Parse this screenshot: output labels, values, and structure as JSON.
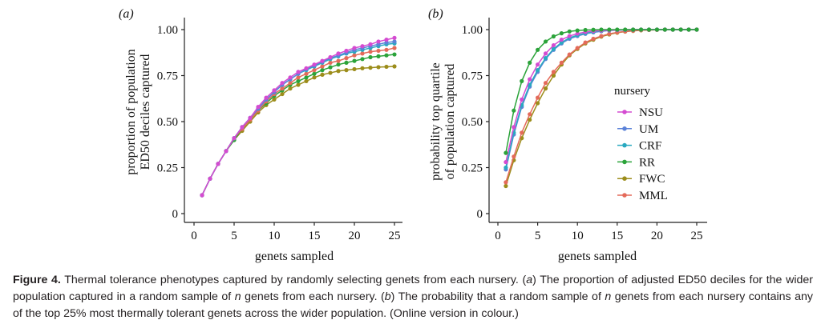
{
  "chart_data": [
    {
      "type": "line",
      "panel_label": "(a)",
      "ylabel": "proportion of population ED50 deciles captured",
      "ylabel_lines": [
        "proportion of population",
        "ED50 deciles captured"
      ],
      "xlabel": "genets sampled",
      "xlim": [
        0,
        26
      ],
      "ylim": [
        -0.05,
        1.03
      ],
      "xticks": [
        0,
        5,
        10,
        15,
        20,
        25
      ],
      "xtick_labels": [
        "0",
        "5",
        "10",
        "15",
        "20",
        "25"
      ],
      "yticks": [
        0,
        0.25,
        0.5,
        0.75,
        1.0
      ],
      "ytick_labels": [
        "0",
        "0.25",
        "0.50",
        "0.75",
        "1.00"
      ],
      "x": [
        1,
        2,
        3,
        4,
        5,
        6,
        7,
        8,
        9,
        10,
        11,
        12,
        13,
        14,
        15,
        16,
        17,
        18,
        19,
        20,
        21,
        22,
        23,
        24,
        25
      ],
      "series": [
        {
          "name": "FWC",
          "color": "#9c8d1b",
          "values": [
            0.1,
            0.19,
            0.27,
            0.34,
            0.4,
            0.45,
            0.5,
            0.55,
            0.59,
            0.62,
            0.65,
            0.68,
            0.7,
            0.72,
            0.74,
            0.755,
            0.765,
            0.775,
            0.78,
            0.785,
            0.79,
            0.793,
            0.796,
            0.798,
            0.8
          ]
        },
        {
          "name": "RR",
          "color": "#2ba33a",
          "values": [
            0.1,
            0.19,
            0.27,
            0.34,
            0.4,
            0.46,
            0.51,
            0.56,
            0.6,
            0.64,
            0.67,
            0.7,
            0.72,
            0.74,
            0.76,
            0.78,
            0.795,
            0.81,
            0.82,
            0.83,
            0.84,
            0.85,
            0.855,
            0.86,
            0.865
          ]
        },
        {
          "name": "MML",
          "color": "#e46a5a",
          "values": [
            0.1,
            0.19,
            0.27,
            0.34,
            0.41,
            0.46,
            0.51,
            0.56,
            0.61,
            0.65,
            0.68,
            0.71,
            0.74,
            0.76,
            0.78,
            0.8,
            0.82,
            0.83,
            0.845,
            0.86,
            0.87,
            0.88,
            0.885,
            0.89,
            0.9
          ]
        },
        {
          "name": "CRF",
          "color": "#29a9c0",
          "values": [
            0.1,
            0.19,
            0.27,
            0.34,
            0.41,
            0.47,
            0.52,
            0.57,
            0.62,
            0.66,
            0.7,
            0.73,
            0.76,
            0.78,
            0.8,
            0.82,
            0.84,
            0.855,
            0.87,
            0.88,
            0.89,
            0.9,
            0.91,
            0.92,
            0.925
          ]
        },
        {
          "name": "UM",
          "color": "#5b82d8",
          "values": [
            0.1,
            0.19,
            0.27,
            0.34,
            0.41,
            0.47,
            0.52,
            0.57,
            0.62,
            0.66,
            0.7,
            0.73,
            0.76,
            0.785,
            0.805,
            0.825,
            0.845,
            0.86,
            0.875,
            0.89,
            0.9,
            0.91,
            0.92,
            0.93,
            0.935
          ]
        },
        {
          "name": "NSU",
          "color": "#d44bd1",
          "values": [
            0.1,
            0.19,
            0.27,
            0.34,
            0.41,
            0.47,
            0.52,
            0.58,
            0.63,
            0.67,
            0.71,
            0.74,
            0.77,
            0.79,
            0.81,
            0.83,
            0.85,
            0.87,
            0.885,
            0.9,
            0.91,
            0.92,
            0.935,
            0.945,
            0.955
          ]
        }
      ]
    },
    {
      "type": "line",
      "panel_label": "(b)",
      "ylabel": "probability top quartile of population captured",
      "ylabel_lines": [
        "probability top quartile",
        "of population captured"
      ],
      "xlabel": "genets sampled",
      "xlim": [
        0,
        26
      ],
      "ylim": [
        -0.05,
        1.03
      ],
      "xticks": [
        0,
        5,
        10,
        15,
        20,
        25
      ],
      "xtick_labels": [
        "0",
        "5",
        "10",
        "15",
        "20",
        "25"
      ],
      "yticks": [
        0,
        0.25,
        0.5,
        0.75,
        1.0
      ],
      "ytick_labels": [
        "0",
        "0.25",
        "0.50",
        "0.75",
        "1.00"
      ],
      "x": [
        1,
        2,
        3,
        4,
        5,
        6,
        7,
        8,
        9,
        10,
        11,
        12,
        13,
        14,
        15,
        16,
        17,
        18,
        19,
        20,
        21,
        22,
        23,
        24,
        25
      ],
      "series": [
        {
          "name": "FWC",
          "color": "#9c8d1b",
          "values": [
            0.15,
            0.29,
            0.41,
            0.51,
            0.6,
            0.68,
            0.75,
            0.81,
            0.86,
            0.895,
            0.925,
            0.945,
            0.962,
            0.974,
            0.983,
            0.989,
            0.993,
            0.996,
            0.998,
            0.999,
            1,
            1,
            1,
            1,
            1
          ]
        },
        {
          "name": "MML",
          "color": "#e46a5a",
          "values": [
            0.17,
            0.31,
            0.44,
            0.54,
            0.63,
            0.71,
            0.77,
            0.82,
            0.865,
            0.9,
            0.93,
            0.95,
            0.965,
            0.977,
            0.985,
            0.99,
            0.994,
            0.997,
            0.998,
            0.999,
            1,
            1,
            1,
            1,
            1
          ]
        },
        {
          "name": "UM",
          "color": "#5b82d8",
          "values": [
            0.24,
            0.43,
            0.58,
            0.69,
            0.77,
            0.84,
            0.89,
            0.925,
            0.95,
            0.965,
            0.977,
            0.985,
            0.991,
            0.995,
            0.997,
            0.998,
            0.999,
            1,
            1,
            1,
            1,
            1,
            1,
            1,
            1
          ]
        },
        {
          "name": "CRF",
          "color": "#29a9c0",
          "values": [
            0.25,
            0.44,
            0.59,
            0.7,
            0.78,
            0.845,
            0.895,
            0.93,
            0.955,
            0.97,
            0.98,
            0.988,
            0.993,
            0.996,
            0.998,
            0.999,
            1,
            1,
            1,
            1,
            1,
            1,
            1,
            1,
            1
          ]
        },
        {
          "name": "NSU",
          "color": "#d44bd1",
          "values": [
            0.28,
            0.47,
            0.62,
            0.73,
            0.81,
            0.87,
            0.915,
            0.945,
            0.965,
            0.978,
            0.987,
            0.992,
            0.995,
            0.997,
            0.998,
            0.999,
            1,
            1,
            1,
            1,
            1,
            1,
            1,
            1,
            1
          ]
        },
        {
          "name": "RR",
          "color": "#2ba33a",
          "values": [
            0.33,
            0.56,
            0.72,
            0.82,
            0.89,
            0.935,
            0.963,
            0.98,
            0.99,
            0.995,
            0.998,
            0.999,
            1,
            1,
            1,
            1,
            1,
            1,
            1,
            1,
            1,
            1,
            1,
            1,
            1
          ]
        }
      ],
      "legend": {
        "title": "nursery",
        "placement": "right",
        "entries": [
          {
            "name": "NSU",
            "color": "#d44bd1"
          },
          {
            "name": "UM",
            "color": "#5b82d8"
          },
          {
            "name": "CRF",
            "color": "#29a9c0"
          },
          {
            "name": "RR",
            "color": "#2ba33a"
          },
          {
            "name": "FWC",
            "color": "#9c8d1b"
          },
          {
            "name": "MML",
            "color": "#e46a5a"
          }
        ]
      }
    }
  ],
  "caption": {
    "label": "Figure 4.",
    "segments": [
      " Thermal tolerance phenotypes captured by randomly selecting genets from each nursery. (",
      "a",
      ") The proportion of adjusted ED50 deciles for the wider population captured in a random sample of ",
      "n",
      " genets from each nursery. (",
      "b",
      ") The probability that a random sample of ",
      "n",
      " genets from each nursery contains any of the top 25% most thermally tolerant genets across the wider population. (Online version in colour.)"
    ]
  }
}
